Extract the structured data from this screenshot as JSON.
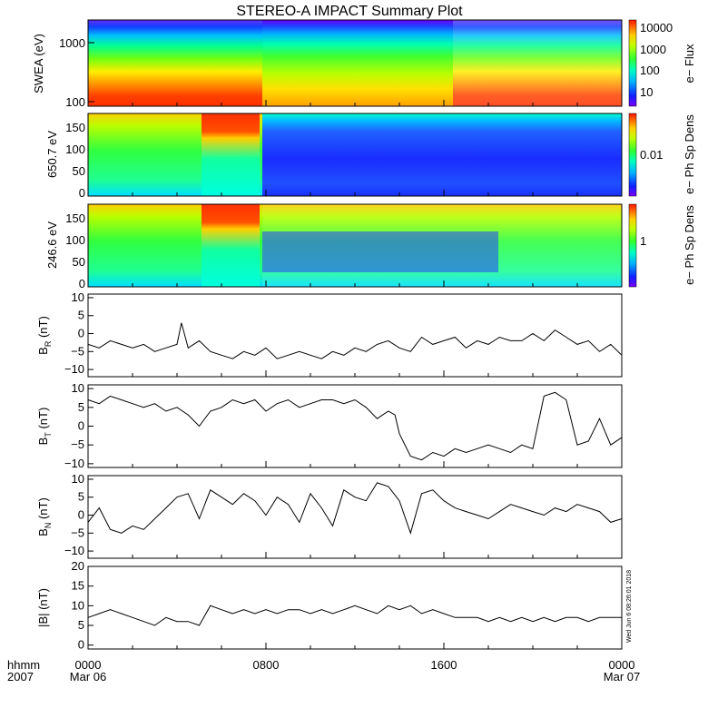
{
  "title": "STEREO-A IMPACT Summary Plot",
  "footer": {
    "time_unit": "hhmm",
    "year": "2007",
    "x_ticks": [
      "0000",
      "0800",
      "1600",
      "0000"
    ],
    "dates": [
      "Mar 06",
      "Mar 07"
    ],
    "stamp": "Wed Jun  6 08:26:01 2018"
  },
  "chart_data": [
    {
      "type": "heatmap",
      "panel": "swea",
      "ylabel": "SWEA (eV)",
      "ylog": true,
      "ylim": [
        95,
        2000
      ],
      "yticks": [
        100,
        1000
      ],
      "ytick_labels": [
        "100",
        "1000"
      ],
      "colorbar": {
        "label": "e− Flux",
        "log": true,
        "range": [
          3,
          30000
        ],
        "ticks": [
          10,
          100,
          1000,
          10000
        ],
        "tick_labels": [
          "10",
          "100",
          "1000",
          "10000"
        ]
      },
      "x": [
        0,
        7.9,
        8.1,
        15.9,
        16.1,
        24
      ],
      "energy_vs_time_note": ""
    },
    {
      "type": "heatmap",
      "panel": "pad650",
      "ylabel": "650.7 eV",
      "ylim": [
        -10,
        180
      ],
      "yticks": [
        0,
        50,
        100,
        150
      ],
      "ytick_labels": [
        "0",
        "50",
        "100",
        "150"
      ],
      "colorbar": {
        "label": "e− Ph Sp Dens",
        "log": true,
        "ticks": [
          0.01
        ],
        "tick_labels": [
          "0.01"
        ]
      }
    },
    {
      "type": "heatmap",
      "panel": "pad246",
      "ylabel": "246.6 eV",
      "ylim": [
        -10,
        180
      ],
      "yticks": [
        0,
        50,
        100,
        150
      ],
      "ytick_labels": [
        "0",
        "50",
        "100",
        "150"
      ],
      "colorbar": {
        "label": "e− Ph Sp Dens",
        "log": true,
        "ticks": [
          1
        ],
        "tick_labels": [
          "1"
        ]
      }
    },
    {
      "type": "line",
      "panel": "br",
      "ylabel": "B",
      "ylabel_sub": "R",
      "ylabel_unit": "(nT)",
      "ylim": [
        -12,
        11
      ],
      "yticks": [
        -10,
        -5,
        0,
        5,
        10
      ],
      "ytick_labels": [
        "−10",
        "−5",
        "0",
        "5",
        "10"
      ],
      "x_hours": [
        0,
        0.5,
        1,
        1.5,
        2,
        2.5,
        3,
        3.5,
        4,
        4.2,
        4.5,
        5,
        5.5,
        6,
        6.5,
        7,
        7.5,
        8,
        8.5,
        9,
        9.5,
        10,
        10.5,
        11,
        11.5,
        12,
        12.5,
        13,
        13.5,
        14,
        14.5,
        15,
        15.5,
        16,
        16.5,
        17,
        17.5,
        18,
        18.5,
        19,
        19.5,
        20,
        20.5,
        21,
        21.5,
        22,
        22.5,
        23,
        23.5,
        24
      ],
      "values": [
        -3,
        -4,
        -2,
        -3,
        -4,
        -3,
        -5,
        -4,
        -3,
        3,
        -4,
        -2,
        -5,
        -6,
        -7,
        -5,
        -6,
        -4,
        -7,
        -6,
        -5,
        -6,
        -7,
        -5,
        -6,
        -4,
        -5,
        -3,
        -2,
        -4,
        -5,
        -1,
        -3,
        -2,
        -1,
        -4,
        -2,
        -3,
        -1,
        -2,
        -2,
        0,
        -2,
        1,
        -1,
        -3,
        -2,
        -5,
        -3,
        -6
      ]
    },
    {
      "type": "line",
      "panel": "bt",
      "ylabel": "B",
      "ylabel_sub": "T",
      "ylabel_unit": "(nT)",
      "ylim": [
        -11,
        11
      ],
      "yticks": [
        -10,
        -5,
        0,
        5,
        10
      ],
      "ytick_labels": [
        "−10",
        "−5",
        "0",
        "5",
        "10"
      ],
      "x_hours": [
        0,
        0.5,
        1,
        1.5,
        2,
        2.5,
        3,
        3.5,
        4,
        4.5,
        5,
        5.5,
        6,
        6.5,
        7,
        7.5,
        8,
        8.5,
        9,
        9.5,
        10,
        10.5,
        11,
        11.5,
        12,
        12.5,
        13,
        13.5,
        13.8,
        14,
        14.5,
        15,
        15.5,
        16,
        16.5,
        17,
        17.5,
        18,
        18.5,
        19,
        19.5,
        20,
        20.5,
        21,
        21.5,
        22,
        22.5,
        23,
        23.5,
        24
      ],
      "values": [
        7,
        6,
        8,
        7,
        6,
        5,
        6,
        4,
        5,
        3,
        0,
        4,
        5,
        7,
        6,
        7,
        4,
        6,
        7,
        5,
        6,
        7,
        7,
        6,
        7,
        5,
        2,
        4,
        3,
        -2,
        -8,
        -9,
        -7,
        -8,
        -6,
        -7,
        -6,
        -5,
        -6,
        -7,
        -5,
        -6,
        8,
        9,
        7,
        -5,
        -4,
        2,
        -5,
        -3
      ]
    },
    {
      "type": "line",
      "panel": "bn",
      "ylabel": "B",
      "ylabel_sub": "N",
      "ylabel_unit": "(nT)",
      "ylim": [
        -12,
        11
      ],
      "yticks": [
        -10,
        -5,
        0,
        5,
        10
      ],
      "ytick_labels": [
        "−10",
        "−5",
        "0",
        "5",
        "10"
      ],
      "x_hours": [
        0,
        0.5,
        1,
        1.5,
        2,
        2.5,
        3,
        3.5,
        4,
        4.5,
        5,
        5.5,
        6,
        6.5,
        7,
        7.5,
        8,
        8.5,
        9,
        9.5,
        10,
        10.5,
        11,
        11.5,
        12,
        12.5,
        13,
        13.5,
        14,
        14.5,
        15,
        15.5,
        16,
        16.5,
        17,
        17.5,
        18,
        18.5,
        19,
        19.5,
        20,
        20.5,
        21,
        21.5,
        22,
        22.5,
        23,
        23.5,
        24
      ],
      "values": [
        -2,
        2,
        -4,
        -5,
        -3,
        -4,
        -1,
        2,
        5,
        6,
        -1,
        7,
        5,
        3,
        6,
        4,
        0,
        5,
        3,
        -2,
        6,
        2,
        -3,
        7,
        5,
        4,
        9,
        8,
        4,
        -5,
        6,
        7,
        4,
        2,
        1,
        0,
        -1,
        1,
        3,
        2,
        1,
        0,
        2,
        1,
        3,
        2,
        1,
        -2,
        -1
      ]
    },
    {
      "type": "line",
      "panel": "bmag",
      "ylabel": "|B| (nT)",
      "ylim": [
        -1,
        20
      ],
      "yticks": [
        0,
        5,
        10,
        15,
        20
      ],
      "ytick_labels": [
        "0",
        "5",
        "10",
        "15",
        "20"
      ],
      "x_hours": [
        0,
        0.5,
        1,
        1.5,
        2,
        2.5,
        3,
        3.5,
        4,
        4.5,
        5,
        5.5,
        6,
        6.5,
        7,
        7.5,
        8,
        8.5,
        9,
        9.5,
        10,
        10.5,
        11,
        11.5,
        12,
        12.5,
        13,
        13.5,
        14,
        14.5,
        15,
        15.5,
        16,
        16.5,
        17,
        17.5,
        18,
        18.5,
        19,
        19.5,
        20,
        20.5,
        21,
        21.5,
        22,
        22.5,
        23,
        23.5,
        24
      ],
      "values": [
        7,
        8,
        9,
        8,
        7,
        6,
        5,
        7,
        6,
        6,
        5,
        10,
        9,
        8,
        9,
        8,
        9,
        8,
        9,
        9,
        8,
        9,
        8,
        9,
        10,
        9,
        8,
        10,
        9,
        10,
        8,
        9,
        8,
        7,
        7,
        7,
        6,
        7,
        6,
        7,
        6,
        7,
        6,
        7,
        7,
        6,
        7,
        7,
        7
      ]
    }
  ]
}
